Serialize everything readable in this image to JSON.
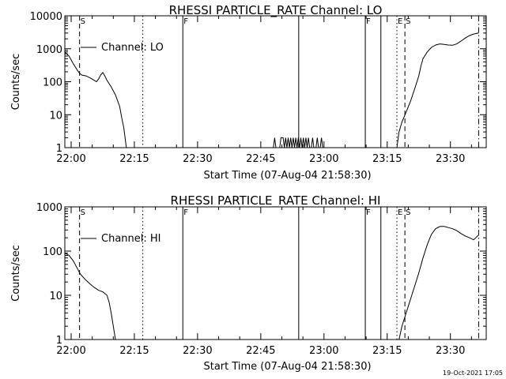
{
  "footer": {
    "timestamp": "19-Oct-2021 17:05"
  },
  "chart_data": [
    {
      "type": "line",
      "title": "RHESSI PARTICLE_RATE Channel: LO",
      "xlabel": "Start Time (07-Aug-04 21:58:30)",
      "ylabel": "Counts/sec",
      "legend": {
        "label": "Channel: LO",
        "placement": "top-left"
      },
      "xlim": [
        0,
        100
      ],
      "ylim": [
        1,
        10000
      ],
      "yscale": "log",
      "x_ticks": [
        {
          "t": 1.5,
          "label": "22:00"
        },
        {
          "t": 16.5,
          "label": "22:15"
        },
        {
          "t": 31.5,
          "label": "22:30"
        },
        {
          "t": 46.5,
          "label": "22:45"
        },
        {
          "t": 61.5,
          "label": "23:00"
        },
        {
          "t": 76.5,
          "label": "23:15"
        },
        {
          "t": 91.5,
          "label": "23:30"
        }
      ],
      "y_ticks": [
        {
          "v": 1,
          "label": "1"
        },
        {
          "v": 10,
          "label": "10"
        },
        {
          "v": 100,
          "label": "100"
        },
        {
          "v": 1000,
          "label": "1000"
        },
        {
          "v": 10000,
          "label": "10000"
        }
      ],
      "vlines": [
        {
          "t": 3.5,
          "style": "dashed",
          "label": "S"
        },
        {
          "t": 18.5,
          "style": "dotted",
          "label": ""
        },
        {
          "t": 28.0,
          "style": "solid",
          "label": "F"
        },
        {
          "t": 55.5,
          "style": "solid",
          "label": ""
        },
        {
          "t": 71.3,
          "style": "solid",
          "label": "F"
        },
        {
          "t": 75.0,
          "style": "solid",
          "label": ""
        },
        {
          "t": 78.8,
          "style": "dotted",
          "label": "E"
        },
        {
          "t": 80.7,
          "style": "dashed",
          "label": "S"
        },
        {
          "t": 98.2,
          "style": "dashdot",
          "label": ""
        }
      ],
      "series": [
        {
          "name": "Channel: LO",
          "points": [
            [
              0,
              800
            ],
            [
              1,
              600
            ],
            [
              2,
              350
            ],
            [
              3,
              220
            ],
            [
              3.5,
              180
            ],
            [
              4,
              160
            ],
            [
              5,
              150
            ],
            [
              6,
              130
            ],
            [
              7,
              110
            ],
            [
              7.5,
              100
            ],
            [
              8,
              120
            ],
            [
              8.5,
              160
            ],
            [
              9,
              190
            ],
            [
              9.5,
              150
            ],
            [
              10,
              110
            ],
            [
              11,
              70
            ],
            [
              12,
              40
            ],
            [
              13,
              18
            ],
            [
              13.5,
              8
            ],
            [
              14,
              4
            ],
            [
              14.3,
              2
            ],
            [
              14.6,
              1
            ]
          ]
        },
        {
          "name": "",
          "points": [
            [
              49.5,
              1
            ],
            [
              49.8,
              2
            ],
            [
              50.1,
              1
            ],
            [
              51.0,
              1
            ],
            [
              51.3,
              2
            ],
            [
              51.8,
              2
            ],
            [
              52.1,
              1
            ],
            [
              52.4,
              2
            ],
            [
              52.7,
              1
            ],
            [
              53.0,
              2
            ],
            [
              53.3,
              1
            ],
            [
              53.6,
              2
            ],
            [
              53.9,
              1
            ],
            [
              54.2,
              2
            ],
            [
              54.5,
              1
            ],
            [
              54.8,
              2
            ],
            [
              55.1,
              1
            ],
            [
              55.4,
              2
            ],
            [
              55.7,
              1
            ],
            [
              56.0,
              2
            ],
            [
              56.3,
              1
            ],
            [
              56.6,
              2
            ],
            [
              56.9,
              1
            ],
            [
              57.2,
              2
            ],
            [
              57.5,
              1
            ],
            [
              57.8,
              2
            ],
            [
              58.1,
              1
            ],
            [
              58.5,
              1
            ],
            [
              58.8,
              2
            ],
            [
              59.1,
              1
            ],
            [
              59.6,
              1
            ],
            [
              59.9,
              2
            ],
            [
              60.2,
              1
            ],
            [
              60.6,
              1
            ],
            [
              60.9,
              2
            ],
            [
              61.2,
              1
            ]
          ]
        },
        {
          "name": "",
          "points": [
            [
              78.8,
              1
            ],
            [
              79.3,
              3
            ],
            [
              80,
              6
            ],
            [
              81,
              12
            ],
            [
              82,
              25
            ],
            [
              83,
              60
            ],
            [
              84,
              150
            ],
            [
              84.5,
              300
            ],
            [
              85,
              500
            ],
            [
              86,
              800
            ],
            [
              87,
              1100
            ],
            [
              88,
              1300
            ],
            [
              89,
              1400
            ],
            [
              90,
              1350
            ],
            [
              91,
              1300
            ],
            [
              92,
              1280
            ],
            [
              93,
              1400
            ],
            [
              94,
              1700
            ],
            [
              95,
              2100
            ],
            [
              96,
              2500
            ],
            [
              97,
              2800
            ],
            [
              98.2,
              3000
            ]
          ]
        }
      ]
    },
    {
      "type": "line",
      "title": "RHESSI PARTICLE_RATE Channel: HI",
      "xlabel": "Start Time (07-Aug-04 21:58:30)",
      "ylabel": "Counts/sec",
      "legend": {
        "label": "Channel: HI",
        "placement": "top-left"
      },
      "xlim": [
        0,
        100
      ],
      "ylim": [
        1,
        1000
      ],
      "yscale": "log",
      "x_ticks": [
        {
          "t": 1.5,
          "label": "22:00"
        },
        {
          "t": 16.5,
          "label": "22:15"
        },
        {
          "t": 31.5,
          "label": "22:30"
        },
        {
          "t": 46.5,
          "label": "22:45"
        },
        {
          "t": 61.5,
          "label": "23:00"
        },
        {
          "t": 76.5,
          "label": "23:15"
        },
        {
          "t": 91.5,
          "label": "23:30"
        }
      ],
      "y_ticks": [
        {
          "v": 1,
          "label": "1"
        },
        {
          "v": 10,
          "label": "10"
        },
        {
          "v": 100,
          "label": "100"
        },
        {
          "v": 1000,
          "label": "1000"
        }
      ],
      "vlines": [
        {
          "t": 3.5,
          "style": "dashed",
          "label": "S"
        },
        {
          "t": 18.5,
          "style": "dotted",
          "label": ""
        },
        {
          "t": 28.0,
          "style": "solid",
          "label": "F"
        },
        {
          "t": 55.5,
          "style": "solid",
          "label": ""
        },
        {
          "t": 71.3,
          "style": "solid",
          "label": "F"
        },
        {
          "t": 75.0,
          "style": "solid",
          "label": ""
        },
        {
          "t": 78.8,
          "style": "dotted",
          "label": "E"
        },
        {
          "t": 80.7,
          "style": "dashed",
          "label": "S"
        },
        {
          "t": 98.2,
          "style": "dashdot",
          "label": ""
        }
      ],
      "series": [
        {
          "name": "Channel: HI",
          "points": [
            [
              0,
              90
            ],
            [
              1,
              80
            ],
            [
              2,
              60
            ],
            [
              3,
              40
            ],
            [
              3.5,
              32
            ],
            [
              4,
              28
            ],
            [
              5,
              22
            ],
            [
              6,
              18
            ],
            [
              7,
              15
            ],
            [
              8,
              13
            ],
            [
              9,
              12
            ],
            [
              10,
              10
            ],
            [
              10.5,
              7
            ],
            [
              11,
              4
            ],
            [
              11.5,
              2
            ],
            [
              12,
              1
            ]
          ]
        },
        {
          "name": "",
          "points": [
            [
              79.3,
              1
            ],
            [
              80,
              2
            ],
            [
              81,
              4
            ],
            [
              82,
              8
            ],
            [
              83,
              16
            ],
            [
              84,
              32
            ],
            [
              85,
              70
            ],
            [
              86,
              140
            ],
            [
              87,
              240
            ],
            [
              88,
              320
            ],
            [
              89,
              360
            ],
            [
              90,
              360
            ],
            [
              91,
              340
            ],
            [
              92,
              320
            ],
            [
              93,
              290
            ],
            [
              94,
              250
            ],
            [
              95,
              220
            ],
            [
              96,
              200
            ],
            [
              97,
              180
            ],
            [
              98.2,
              230
            ]
          ]
        }
      ]
    }
  ]
}
